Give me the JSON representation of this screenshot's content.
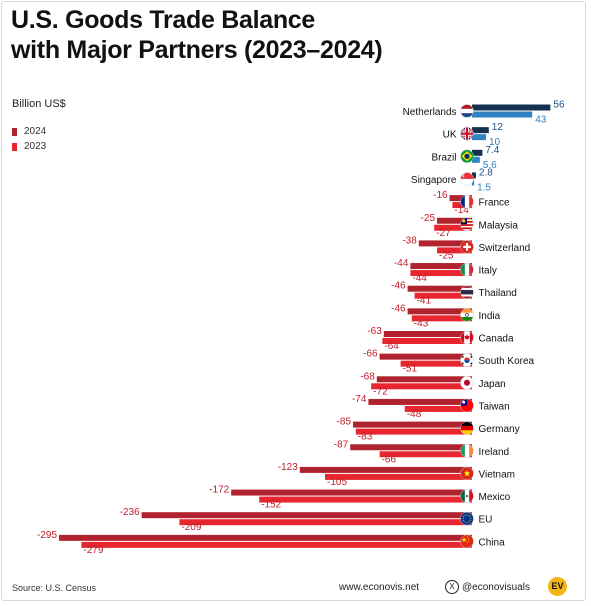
{
  "title_line1": "U.S. Goods Trade Balance",
  "title_line2": "with Major Partners (2023–2024)",
  "unit_label": "Billion US$",
  "legend": [
    {
      "label": "2024",
      "color": "#b0232e"
    },
    {
      "label": "2023",
      "color": "#e8262f"
    }
  ],
  "footer": {
    "source": "Source: U.S. Census",
    "website": "www.econovis.net",
    "x_icon": "x-logo-icon",
    "handle": "@econovisuals",
    "logo_text": "EV"
  },
  "colors": {
    "neg_2024": "#b0232e",
    "neg_2023": "#e8262f",
    "pos_2024": "#14304f",
    "pos_2023": "#2f82c3",
    "label_neg": "#c0202a",
    "label_pos": "#1f4f80"
  },
  "chart_data": {
    "type": "bar",
    "orientation": "horizontal",
    "categories": [
      "Netherlands",
      "UK",
      "Brazil",
      "Singapore",
      "France",
      "Malaysia",
      "Switzerland",
      "Italy",
      "Thailand",
      "India",
      "Canada",
      "South Korea",
      "Japan",
      "Taiwan",
      "Germany",
      "Ireland",
      "Vietnam",
      "Mexico",
      "EU",
      "China"
    ],
    "series": [
      {
        "name": "2024",
        "values": [
          56,
          12,
          7.4,
          2.8,
          -16,
          -25,
          -38,
          -44,
          -46,
          -46,
          -63,
          -66,
          -68,
          -74,
          -85,
          -87,
          -123,
          -172,
          -236,
          -295
        ]
      },
      {
        "name": "2023",
        "values": [
          43,
          10,
          5.6,
          1.5,
          -14,
          -27,
          -25,
          -44,
          -41,
          -43,
          -64,
          -51,
          -72,
          -48,
          -83,
          -66,
          -105,
          -152,
          -209,
          -279
        ]
      }
    ],
    "flag_icons": [
      "flag-netherlands-icon",
      "flag-uk-icon",
      "flag-brazil-icon",
      "flag-singapore-icon",
      "flag-france-icon",
      "flag-malaysia-icon",
      "flag-switzerland-icon",
      "flag-italy-icon",
      "flag-thailand-icon",
      "flag-india-icon",
      "flag-canada-icon",
      "flag-south-korea-icon",
      "flag-japan-icon",
      "flag-taiwan-icon",
      "flag-germany-icon",
      "flag-ireland-icon",
      "flag-vietnam-icon",
      "flag-mexico-icon",
      "flag-eu-icon",
      "flag-china-icon"
    ]
  }
}
